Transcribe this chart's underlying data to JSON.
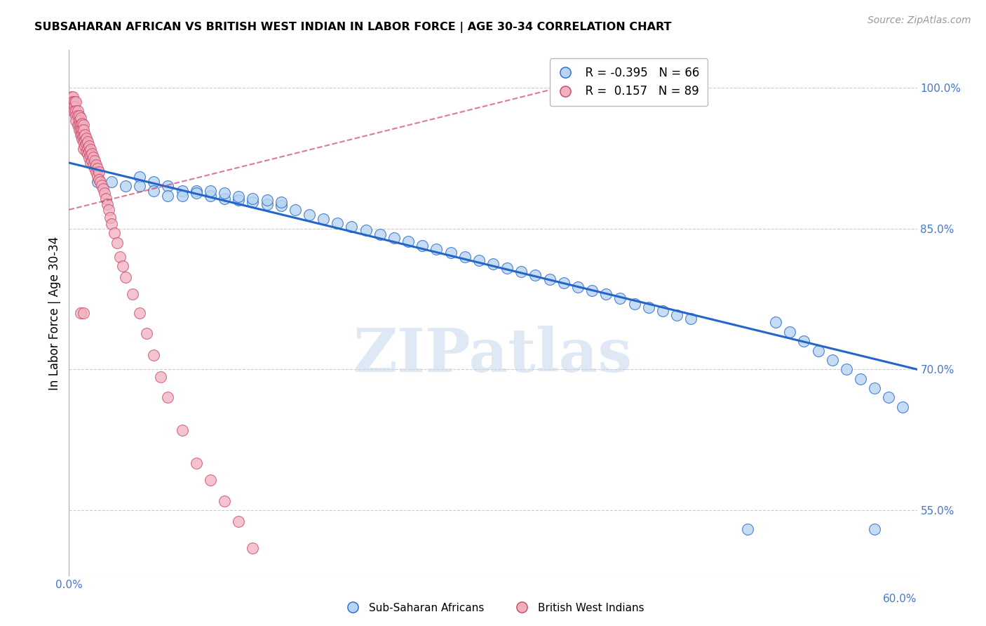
{
  "title": "SUBSAHARAN AFRICAN VS BRITISH WEST INDIAN IN LABOR FORCE | AGE 30-34 CORRELATION CHART",
  "source": "Source: ZipAtlas.com",
  "ylabel": "In Labor Force | Age 30-34",
  "x_min": 0.0,
  "x_max": 0.6,
  "y_min": 0.48,
  "y_max": 1.04,
  "right_yticks": [
    1.0,
    0.85,
    0.7,
    0.55
  ],
  "right_yticklabels": [
    "100.0%",
    "85.0%",
    "70.0%",
    "55.0%"
  ],
  "legend_blue_r": "R = -0.395",
  "legend_blue_n": "N = 66",
  "legend_pink_r": "R =  0.157",
  "legend_pink_n": "N = 89",
  "blue_color": "#b8d4f0",
  "blue_line_color": "#2266cc",
  "pink_color": "#f0b0c0",
  "pink_line_color": "#cc4466",
  "watermark": "ZIPatlas",
  "grid_color": "#cccccc",
  "axis_color": "#4477cc",
  "blue_scatter_x": [
    0.02,
    0.03,
    0.04,
    0.05,
    0.05,
    0.06,
    0.06,
    0.07,
    0.07,
    0.08,
    0.08,
    0.09,
    0.09,
    0.1,
    0.1,
    0.11,
    0.11,
    0.12,
    0.12,
    0.13,
    0.13,
    0.14,
    0.14,
    0.15,
    0.15,
    0.16,
    0.17,
    0.18,
    0.19,
    0.2,
    0.21,
    0.22,
    0.23,
    0.24,
    0.25,
    0.26,
    0.27,
    0.28,
    0.29,
    0.3,
    0.31,
    0.32,
    0.33,
    0.34,
    0.35,
    0.36,
    0.37,
    0.38,
    0.39,
    0.4,
    0.41,
    0.42,
    0.43,
    0.44,
    0.5,
    0.51,
    0.52,
    0.53,
    0.54,
    0.55,
    0.56,
    0.57,
    0.58,
    0.59,
    0.48,
    0.57
  ],
  "blue_scatter_y": [
    0.9,
    0.9,
    0.895,
    0.905,
    0.895,
    0.9,
    0.89,
    0.895,
    0.885,
    0.89,
    0.885,
    0.89,
    0.888,
    0.885,
    0.89,
    0.882,
    0.888,
    0.88,
    0.884,
    0.878,
    0.882,
    0.876,
    0.88,
    0.874,
    0.878,
    0.87,
    0.865,
    0.86,
    0.856,
    0.852,
    0.848,
    0.844,
    0.84,
    0.836,
    0.832,
    0.828,
    0.824,
    0.82,
    0.816,
    0.812,
    0.808,
    0.804,
    0.8,
    0.796,
    0.792,
    0.788,
    0.784,
    0.78,
    0.776,
    0.77,
    0.766,
    0.762,
    0.758,
    0.754,
    0.75,
    0.74,
    0.73,
    0.72,
    0.71,
    0.7,
    0.69,
    0.68,
    0.67,
    0.66,
    0.53,
    0.53
  ],
  "pink_scatter_x": [
    0.002,
    0.002,
    0.002,
    0.003,
    0.003,
    0.003,
    0.003,
    0.004,
    0.004,
    0.004,
    0.005,
    0.005,
    0.005,
    0.005,
    0.006,
    0.006,
    0.006,
    0.007,
    0.007,
    0.007,
    0.007,
    0.008,
    0.008,
    0.008,
    0.008,
    0.009,
    0.009,
    0.009,
    0.009,
    0.01,
    0.01,
    0.01,
    0.01,
    0.01,
    0.011,
    0.011,
    0.011,
    0.012,
    0.012,
    0.012,
    0.013,
    0.013,
    0.013,
    0.014,
    0.014,
    0.014,
    0.015,
    0.015,
    0.015,
    0.016,
    0.016,
    0.017,
    0.017,
    0.018,
    0.018,
    0.019,
    0.019,
    0.02,
    0.02,
    0.021,
    0.021,
    0.022,
    0.023,
    0.024,
    0.025,
    0.026,
    0.027,
    0.028,
    0.029,
    0.03,
    0.032,
    0.034,
    0.036,
    0.038,
    0.04,
    0.045,
    0.05,
    0.055,
    0.06,
    0.065,
    0.07,
    0.08,
    0.09,
    0.1,
    0.11,
    0.12,
    0.13,
    0.008,
    0.01
  ],
  "pink_scatter_y": [
    0.99,
    0.985,
    0.98,
    0.99,
    0.985,
    0.98,
    0.975,
    0.985,
    0.98,
    0.975,
    0.985,
    0.975,
    0.97,
    0.965,
    0.975,
    0.97,
    0.96,
    0.97,
    0.965,
    0.96,
    0.955,
    0.968,
    0.96,
    0.955,
    0.95,
    0.962,
    0.955,
    0.95,
    0.945,
    0.96,
    0.955,
    0.948,
    0.942,
    0.935,
    0.95,
    0.944,
    0.938,
    0.946,
    0.94,
    0.932,
    0.942,
    0.936,
    0.93,
    0.938,
    0.932,
    0.925,
    0.934,
    0.928,
    0.92,
    0.93,
    0.922,
    0.926,
    0.918,
    0.922,
    0.914,
    0.918,
    0.91,
    0.914,
    0.906,
    0.91,
    0.902,
    0.9,
    0.896,
    0.892,
    0.888,
    0.882,
    0.876,
    0.87,
    0.862,
    0.855,
    0.845,
    0.835,
    0.82,
    0.81,
    0.798,
    0.78,
    0.76,
    0.738,
    0.715,
    0.692,
    0.67,
    0.635,
    0.6,
    0.582,
    0.56,
    0.538,
    0.51,
    0.76,
    0.76
  ],
  "blue_trendline_x": [
    0.0,
    0.6
  ],
  "blue_trendline_y": [
    0.92,
    0.7
  ],
  "pink_trendline_x": [
    0.0,
    0.4
  ],
  "pink_trendline_y": [
    0.87,
    1.02
  ]
}
